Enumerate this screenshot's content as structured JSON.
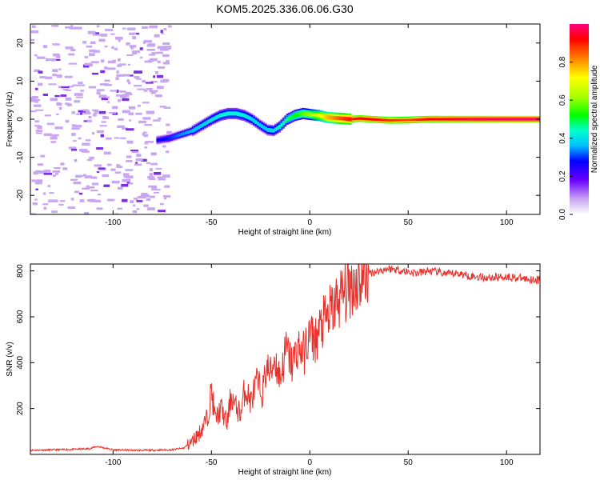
{
  "title": "KOM5.2025.336.06.06.G30",
  "colors": {
    "snr_line": "#e8302a",
    "noise_speckle": "#c9a6f2",
    "frame": "#000000"
  },
  "chart_data": [
    {
      "type": "heatmap",
      "name": "spectrogram",
      "xlabel": "Height of straight line (km)",
      "ylabel": "Frequency (Hz)",
      "xlim": [
        -142,
        117
      ],
      "ylim": [
        -25,
        25
      ],
      "xticks": [
        -100,
        -50,
        0,
        50,
        100
      ],
      "yticks": [
        -20,
        -10,
        0,
        10,
        20
      ],
      "xtick_labels": [
        "-100",
        "-50",
        "0",
        "50",
        "100"
      ],
      "ytick_labels": [
        "-20",
        "-10",
        "0",
        "10",
        "20"
      ],
      "noise_region_x": [
        -142,
        -72
      ],
      "ridge": {
        "x": [
          -78,
          -72,
          -66,
          -60,
          -55,
          -50,
          -46,
          -42,
          -38,
          -34,
          -30,
          -26,
          -22,
          -19,
          -16,
          -12,
          -8,
          -4,
          0,
          4,
          8,
          12,
          16,
          20,
          25,
          30,
          40,
          50,
          60,
          80,
          100,
          117
        ],
        "freq": [
          -5.5,
          -5,
          -4,
          -3,
          -1.5,
          0,
          1,
          1.5,
          1.5,
          1,
          0,
          -1.5,
          -2.8,
          -3,
          -2,
          0,
          1,
          1.5,
          1.2,
          1,
          0.5,
          0.3,
          0.2,
          0,
          0.2,
          0,
          -0.3,
          -0.2,
          0,
          0,
          0,
          0
        ],
        "amplitude": [
          0.25,
          0.3,
          0.35,
          0.38,
          0.4,
          0.42,
          0.44,
          0.45,
          0.45,
          0.44,
          0.42,
          0.4,
          0.4,
          0.42,
          0.45,
          0.5,
          0.55,
          0.6,
          0.65,
          0.72,
          0.8,
          0.85,
          0.9,
          0.93,
          0.95,
          0.95,
          0.92,
          0.9,
          0.95,
          0.98,
          1.0,
          1.0
        ]
      },
      "colorbar": {
        "label": "Normalized spectral amplitude",
        "range": [
          0,
          1
        ],
        "ticks": [
          0,
          0.2,
          0.4,
          0.6,
          0.8
        ],
        "tick_labels": [
          "0.0",
          "0.2",
          "0.4",
          "0.6",
          "0.8"
        ]
      }
    },
    {
      "type": "line",
      "name": "snr",
      "xlabel": "Height of straight line (km)",
      "ylabel": "SNR (v/v)",
      "xlim": [
        -142,
        117
      ],
      "ylim": [
        0,
        830
      ],
      "xticks": [
        -100,
        -50,
        0,
        50,
        100
      ],
      "yticks": [
        200,
        400,
        600,
        800
      ],
      "xtick_labels": [
        "-100",
        "-50",
        "0",
        "50",
        "100"
      ],
      "ytick_labels": [
        "200",
        "400",
        "600",
        "800"
      ],
      "series": [
        {
          "name": "SNR",
          "x": [
            -142,
            -130,
            -120,
            -112,
            -108,
            -100,
            -90,
            -80,
            -70,
            -64,
            -60,
            -56,
            -52,
            -50,
            -48,
            -45,
            -42,
            -40,
            -38,
            -35,
            -33,
            -30,
            -27,
            -24,
            -22,
            -20,
            -18,
            -15,
            -12,
            -9,
            -6,
            -3,
            0,
            3,
            6,
            10,
            15,
            20,
            25,
            30,
            35,
            40,
            45,
            50,
            55,
            60,
            65,
            70,
            75,
            80,
            85,
            90,
            100,
            110,
            117
          ],
          "y": [
            18,
            20,
            22,
            25,
            35,
            20,
            18,
            18,
            20,
            28,
            55,
            95,
            160,
            280,
            150,
            200,
            130,
            260,
            210,
            180,
            290,
            230,
            310,
            270,
            380,
            350,
            420,
            330,
            460,
            390,
            470,
            440,
            520,
            500,
            560,
            610,
            680,
            730,
            760,
            790,
            800,
            810,
            805,
            795,
            790,
            800,
            795,
            785,
            790,
            780,
            775,
            770,
            775,
            765,
            760
          ]
        }
      ]
    }
  ]
}
